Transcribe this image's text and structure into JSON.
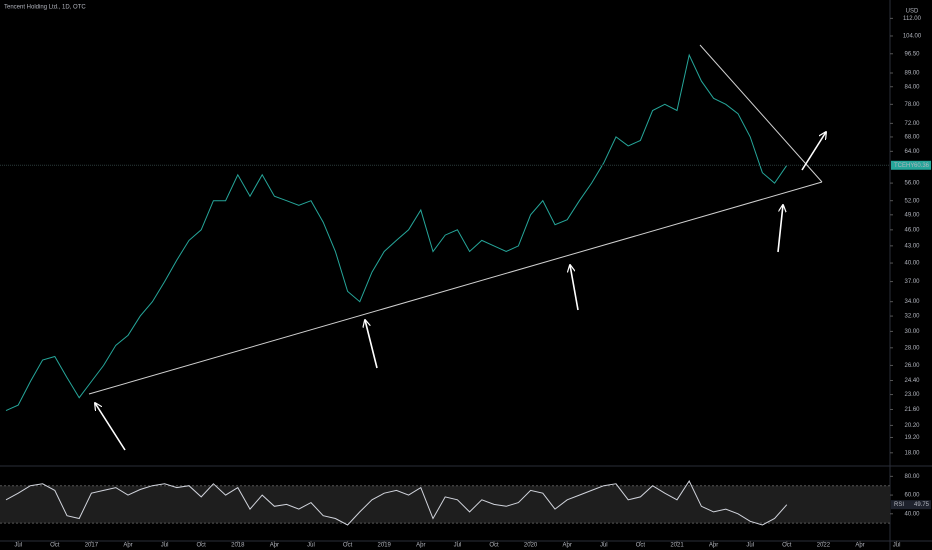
{
  "chart_data": [
    {
      "type": "line",
      "title": "Tencent Holding Ltd., 1D, OTC",
      "currency": "USD",
      "log_scale": true,
      "x": [
        "2016-06",
        "2016-07",
        "2016-08",
        "2016-09",
        "2016-10",
        "2016-11",
        "2016-12",
        "2017-01",
        "2017-02",
        "2017-03",
        "2017-04",
        "2017-05",
        "2017-06",
        "2017-07",
        "2017-08",
        "2017-09",
        "2017-10",
        "2017-11",
        "2017-12",
        "2018-01",
        "2018-02",
        "2018-03",
        "2018-04",
        "2018-05",
        "2018-06",
        "2018-07",
        "2018-08",
        "2018-09",
        "2018-10",
        "2018-11",
        "2018-12",
        "2019-01",
        "2019-02",
        "2019-03",
        "2019-04",
        "2019-05",
        "2019-06",
        "2019-07",
        "2019-08",
        "2019-09",
        "2019-10",
        "2019-11",
        "2019-12",
        "2020-01",
        "2020-02",
        "2020-03",
        "2020-04",
        "2020-05",
        "2020-06",
        "2020-07",
        "2020-08",
        "2020-09",
        "2020-10",
        "2020-11",
        "2020-12",
        "2021-01",
        "2021-02",
        "2021-03",
        "2021-04",
        "2021-05",
        "2021-06",
        "2021-07",
        "2021-08",
        "2021-09",
        "2021-10"
      ],
      "series": [
        {
          "name": "TCEHY",
          "color": "#26a69a",
          "values": [
            21.5,
            22,
            24.3,
            26.6,
            27,
            24.7,
            22.7,
            24.3,
            26,
            28.3,
            29.5,
            32,
            34,
            37,
            40.5,
            44,
            46,
            52,
            52,
            58,
            53,
            58,
            53,
            52,
            51,
            52,
            47.5,
            42,
            35.5,
            34,
            38.5,
            42,
            44,
            46,
            50,
            42,
            45,
            46,
            42,
            44,
            43,
            42,
            43,
            49,
            52,
            47,
            48,
            52,
            56,
            61,
            68,
            65.5,
            67,
            76,
            78,
            76,
            96,
            86,
            80,
            78,
            75,
            68,
            58.5,
            56,
            60.36
          ]
        }
      ],
      "xlim": [
        "2016-06",
        "2022-09"
      ],
      "ylim": [
        17.1,
        121
      ],
      "yticks": [
        {
          "value": 112,
          "label": "112.00"
        },
        {
          "value": 104,
          "label": "104.00"
        },
        {
          "value": 96.5,
          "label": "96.50"
        },
        {
          "value": 89,
          "label": "89.00"
        },
        {
          "value": 84,
          "label": "84.00"
        },
        {
          "value": 78,
          "label": "78.00"
        },
        {
          "value": 72,
          "label": "72.00"
        },
        {
          "value": 68,
          "label": "68.00"
        },
        {
          "value": 64,
          "label": "64.00"
        },
        {
          "value": 56,
          "label": "56.00"
        },
        {
          "value": 52,
          "label": "52.00"
        },
        {
          "value": 49,
          "label": "49.00"
        },
        {
          "value": 46,
          "label": "46.00"
        },
        {
          "value": 43,
          "label": "43.00"
        },
        {
          "value": 40,
          "label": "40.00"
        },
        {
          "value": 37,
          "label": "37.00"
        },
        {
          "value": 34,
          "label": "34.00"
        },
        {
          "value": 32,
          "label": "32.00"
        },
        {
          "value": 30,
          "label": "30.00"
        },
        {
          "value": 28,
          "label": "28.00"
        },
        {
          "value": 26,
          "label": "26.00"
        },
        {
          "value": 24.4,
          "label": "24.40"
        },
        {
          "value": 23,
          "label": "23.00"
        },
        {
          "value": 21.6,
          "label": "21.60"
        },
        {
          "value": 20.2,
          "label": "20.20"
        },
        {
          "value": 19.2,
          "label": "19.20"
        },
        {
          "value": 18,
          "label": "18.00"
        }
      ],
      "xticks": [
        {
          "value": "2016-07",
          "label": "Jul"
        },
        {
          "value": "2016-10",
          "label": "Oct"
        },
        {
          "value": "2017-01",
          "label": "2017"
        },
        {
          "value": "2017-04",
          "label": "Apr"
        },
        {
          "value": "2017-07",
          "label": "Jul"
        },
        {
          "value": "2017-10",
          "label": "Oct"
        },
        {
          "value": "2018-01",
          "label": "2018"
        },
        {
          "value": "2018-04",
          "label": "Apr"
        },
        {
          "value": "2018-07",
          "label": "Jul"
        },
        {
          "value": "2018-10",
          "label": "Oct"
        },
        {
          "value": "2019-01",
          "label": "2019"
        },
        {
          "value": "2019-04",
          "label": "Apr"
        },
        {
          "value": "2019-07",
          "label": "Jul"
        },
        {
          "value": "2019-10",
          "label": "Oct"
        },
        {
          "value": "2020-01",
          "label": "2020"
        },
        {
          "value": "2020-04",
          "label": "Apr"
        },
        {
          "value": "2020-07",
          "label": "Jul"
        },
        {
          "value": "2020-10",
          "label": "Oct"
        },
        {
          "value": "2021-01",
          "label": "2021"
        },
        {
          "value": "2021-04",
          "label": "Apr"
        },
        {
          "value": "2021-07",
          "label": "Jul"
        },
        {
          "value": "2021-10",
          "label": "Oct"
        },
        {
          "value": "2022-01",
          "label": "2022"
        },
        {
          "value": "2022-04",
          "label": "Apr"
        },
        {
          "value": "2022-07",
          "label": "Jul"
        }
      ]
    },
    {
      "type": "line",
      "name": "RSI",
      "series": [
        {
          "name": "RSI",
          "color": "#d1d4dc",
          "values": [
            55,
            62,
            70,
            72,
            65,
            38,
            35,
            62,
            65,
            68,
            60,
            66,
            70,
            72,
            68,
            70,
            58,
            72,
            60,
            68,
            45,
            60,
            48,
            50,
            45,
            52,
            38,
            35,
            28,
            42,
            55,
            62,
            65,
            60,
            68,
            35,
            58,
            55,
            42,
            55,
            50,
            48,
            52,
            65,
            62,
            45,
            55,
            60,
            65,
            70,
            72,
            55,
            58,
            70,
            62,
            55,
            75,
            48,
            42,
            45,
            40,
            32,
            28,
            35,
            49.75
          ]
        }
      ],
      "ylim": [
        12,
        90
      ],
      "bands": [
        70,
        30
      ],
      "yticks": [
        {
          "value": 80,
          "label": "80.00"
        },
        {
          "value": 60,
          "label": "60.00"
        },
        {
          "value": 40,
          "label": "40.00"
        }
      ]
    }
  ]
}
